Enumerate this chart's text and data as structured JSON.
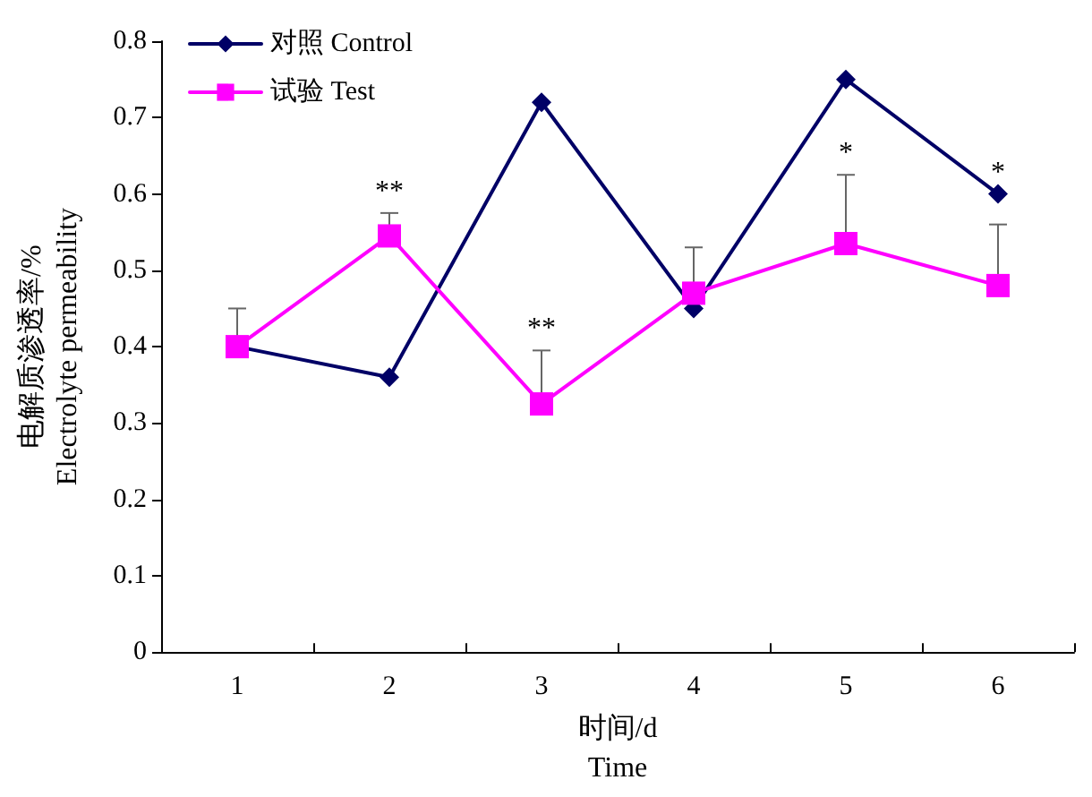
{
  "chart_data": {
    "type": "line",
    "xlabel": "时间/d\nTime",
    "ylabel": "电解质渗透率/%\nElectrolyte permeability",
    "categories": [
      "1",
      "2",
      "3",
      "4",
      "5",
      "6"
    ],
    "series": [
      {
        "name": "对照 Control",
        "color": "#000066",
        "marker": "diamond",
        "values": [
          0.4,
          0.36,
          0.72,
          0.45,
          0.75,
          0.6
        ]
      },
      {
        "name": "试验 Test",
        "color": "#ff00ff",
        "marker": "square",
        "values": [
          0.4,
          0.545,
          0.325,
          0.47,
          0.535,
          0.48
        ],
        "errors": [
          [
            0.4,
            0.45
          ],
          [
            0.545,
            0.575
          ],
          [
            0.325,
            0.395
          ],
          [
            0.47,
            0.53
          ],
          [
            0.535,
            0.625
          ],
          [
            0.48,
            0.56
          ]
        ]
      }
    ],
    "annotations": [
      {
        "text": "**",
        "x": "2",
        "y": 0.545
      },
      {
        "text": "**",
        "x": "3",
        "y": 0.325
      },
      {
        "text": "*",
        "x": "5",
        "y": 0.535
      },
      {
        "text": "*",
        "x": "6",
        "y": 0.6
      }
    ],
    "ylim": [
      0,
      0.8
    ],
    "yticks": [
      0,
      0.1,
      0.2,
      0.3,
      0.4,
      0.5,
      0.6,
      0.7,
      0.8
    ],
    "grid": false,
    "legend": "top left",
    "line_style": "solid"
  }
}
